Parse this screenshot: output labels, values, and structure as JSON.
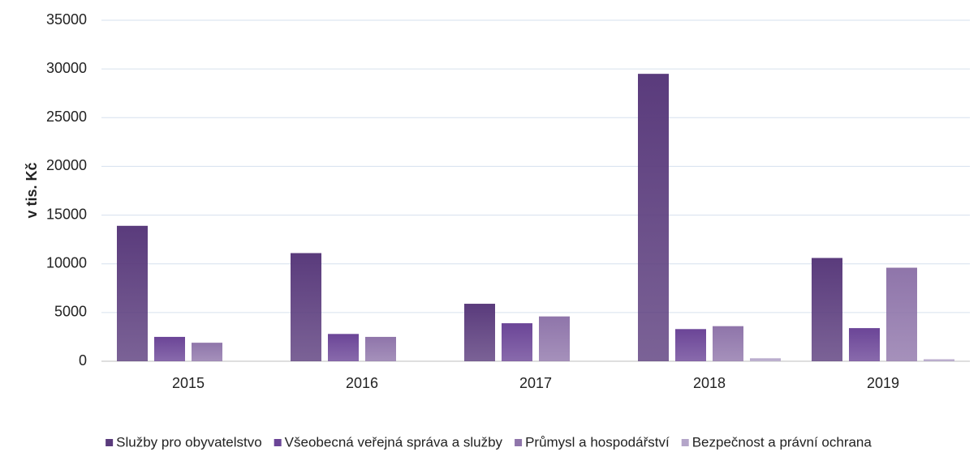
{
  "chart_data": {
    "type": "bar",
    "y_label": "v tis. Kč",
    "categories": [
      "2015",
      "2016",
      "2017",
      "2018",
      "2019"
    ],
    "series": [
      {
        "name": "Služby pro obyvatelstvo",
        "color": "#5a3b7c",
        "values": [
          13900,
          11100,
          5900,
          29500,
          10600
        ]
      },
      {
        "name": "Všeobecná veřejná správa a služby",
        "color": "#6b4597",
        "values": [
          2500,
          2800,
          3900,
          3300,
          3400
        ]
      },
      {
        "name": "Průmysl a hospodářství",
        "color": "#8f75aa",
        "values": [
          1900,
          2500,
          4600,
          3600,
          9600
        ]
      },
      {
        "name": "Bezpečnost a právní ochrana",
        "color": "#b4a5c9",
        "values": [
          0,
          0,
          0,
          300,
          200
        ]
      }
    ],
    "ylim": [
      0,
      35000
    ],
    "yticks": [
      0,
      5000,
      10000,
      15000,
      20000,
      25000,
      30000,
      35000
    ],
    "grid": true,
    "legend": "bottom"
  }
}
